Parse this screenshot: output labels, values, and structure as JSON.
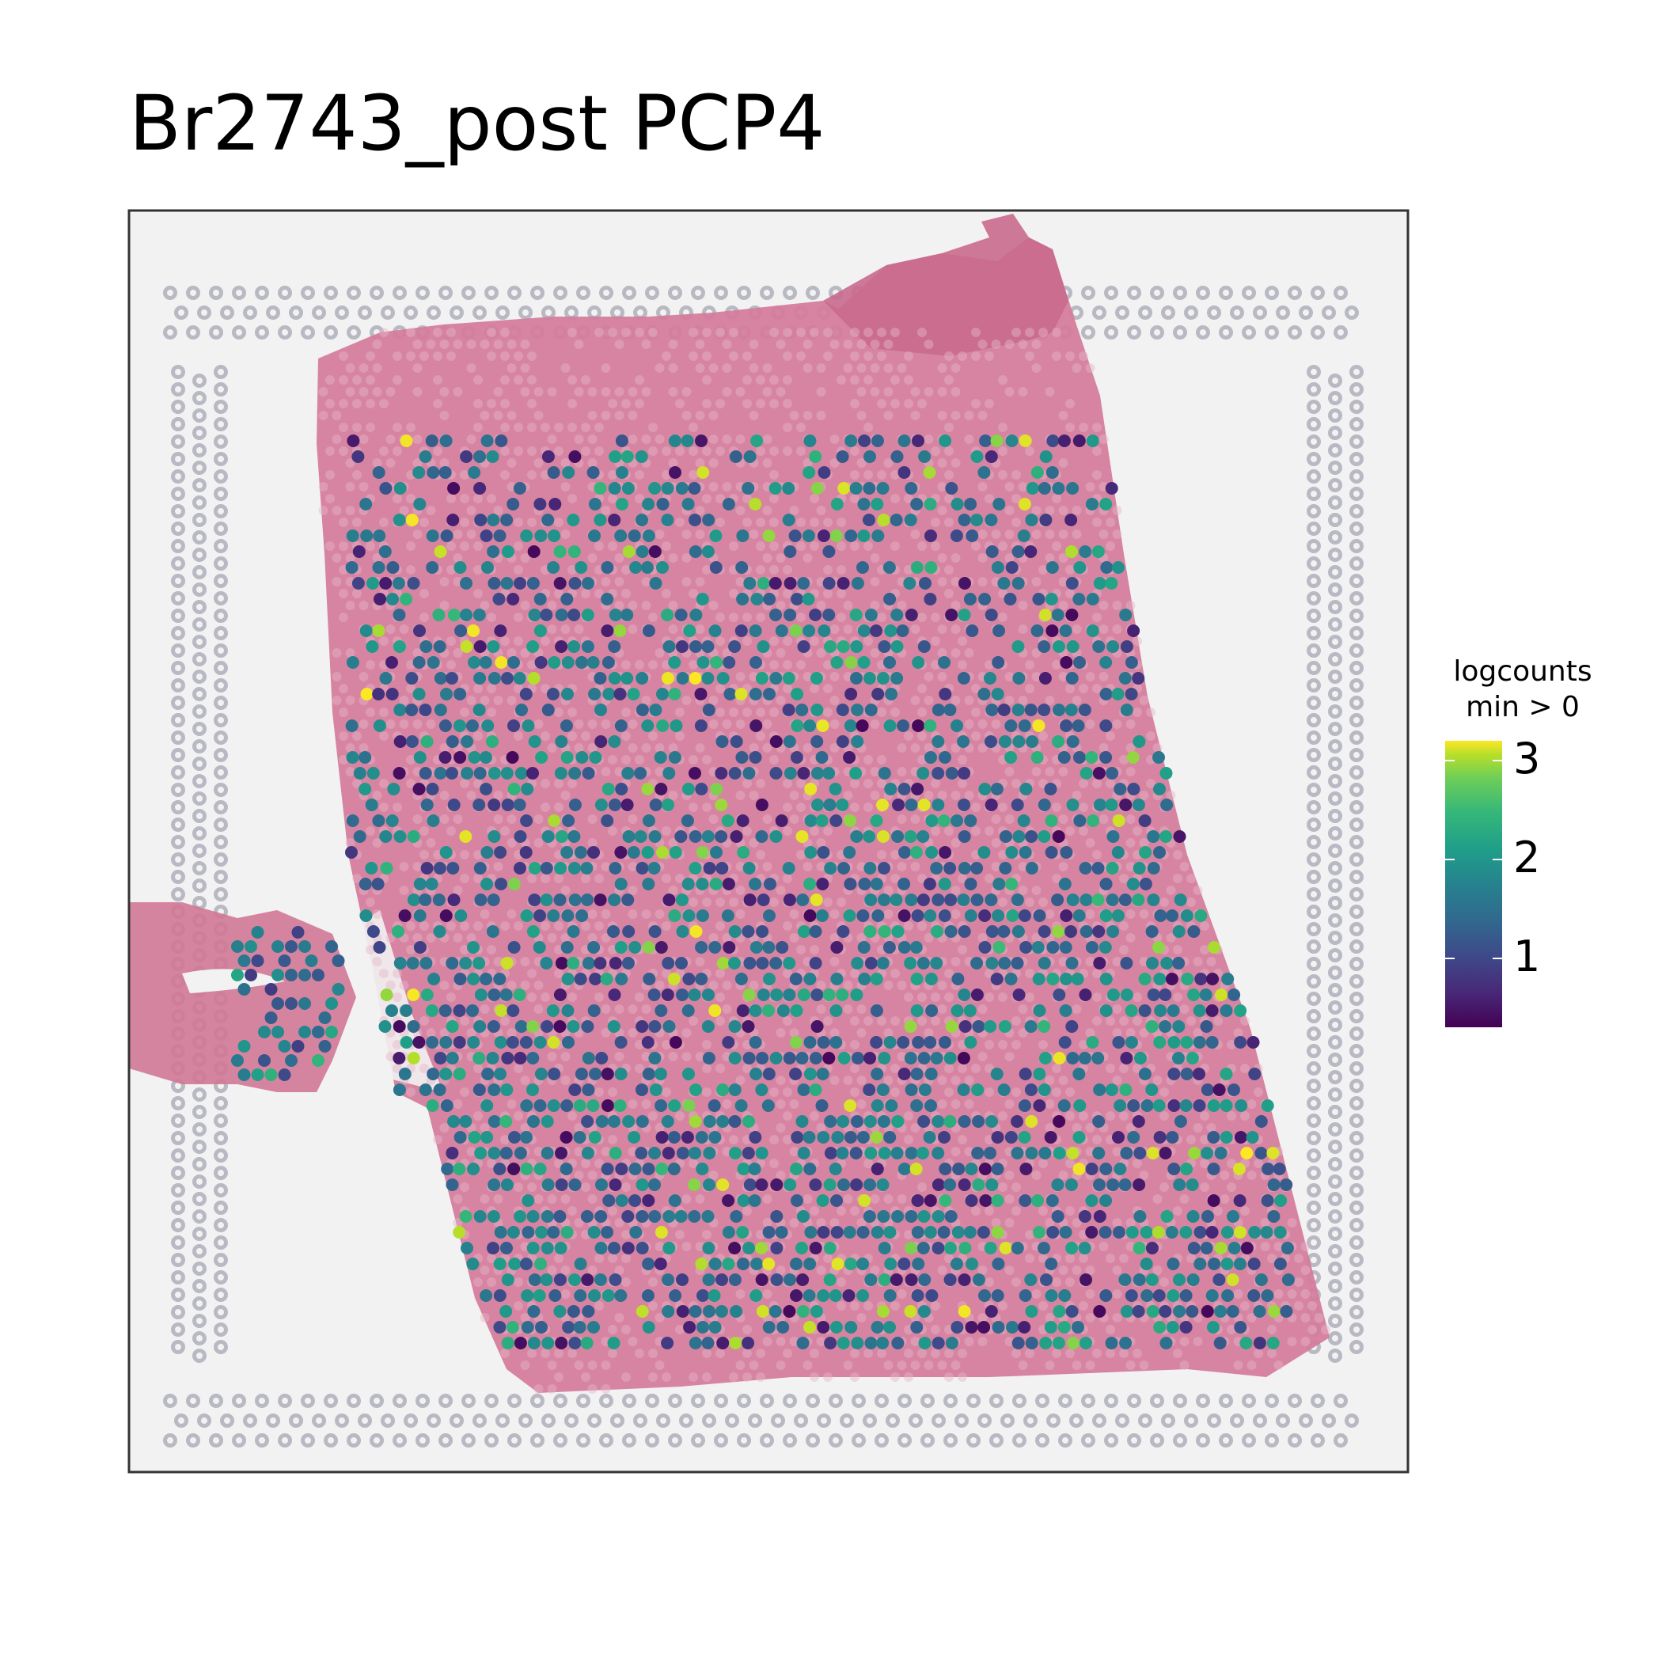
{
  "chart_data": {
    "type": "scatter",
    "title": "Br2743_post PCP4",
    "legend": {
      "title_line1": "logcounts",
      "title_line2": "min > 0",
      "ticks": [
        1,
        2,
        3
      ],
      "range": [
        0.3,
        3.2
      ],
      "colormap": "viridis",
      "placement": "right"
    },
    "background": "H&E tissue image with fiducial spot frame",
    "grid": false,
    "spot_value_range": [
      0.3,
      3.2
    ],
    "colors": {
      "low": "#440154",
      "mid": "#21918c",
      "high": "#fde725",
      "tissue": "#d77a9a",
      "frame": "#333333"
    }
  }
}
